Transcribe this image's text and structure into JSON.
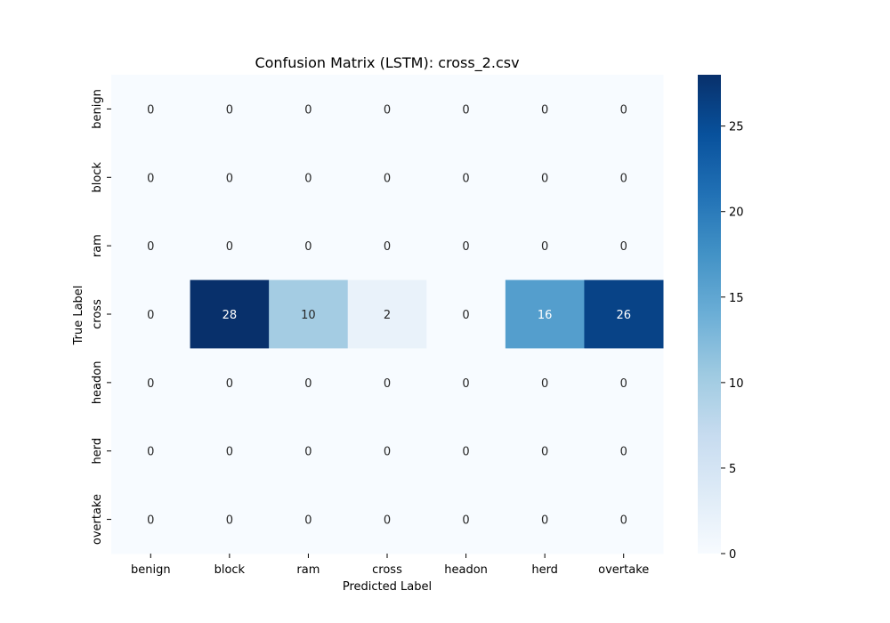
{
  "chart_data": {
    "type": "heatmap",
    "title": "Confusion Matrix (LSTM): cross_2.csv",
    "xlabel": "Predicted Label",
    "ylabel": "True Label",
    "x_categories": [
      "benign",
      "block",
      "ram",
      "cross",
      "headon",
      "herd",
      "overtake"
    ],
    "y_categories": [
      "benign",
      "block",
      "ram",
      "cross",
      "headon",
      "herd",
      "overtake"
    ],
    "values": [
      [
        0,
        0,
        0,
        0,
        0,
        0,
        0
      ],
      [
        0,
        0,
        0,
        0,
        0,
        0,
        0
      ],
      [
        0,
        0,
        0,
        0,
        0,
        0,
        0
      ],
      [
        0,
        28,
        10,
        2,
        0,
        16,
        26
      ],
      [
        0,
        0,
        0,
        0,
        0,
        0,
        0
      ],
      [
        0,
        0,
        0,
        0,
        0,
        0,
        0
      ],
      [
        0,
        0,
        0,
        0,
        0,
        0,
        0
      ]
    ],
    "colormap": "Blues",
    "colorbar": {
      "range": [
        0,
        28
      ],
      "ticks": [
        0,
        5,
        10,
        15,
        20,
        25
      ],
      "tick_labels": [
        "0",
        "5",
        "10",
        "15",
        "20",
        "25"
      ]
    },
    "grid": false
  }
}
